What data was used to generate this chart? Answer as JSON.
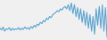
{
  "values": [
    55,
    52,
    57,
    50,
    54,
    53,
    56,
    51,
    55,
    52,
    54,
    53,
    56,
    52,
    55,
    53,
    57,
    54,
    56,
    53,
    58,
    55,
    60,
    57,
    62,
    60,
    65,
    63,
    68,
    66,
    72,
    70,
    75,
    73,
    78,
    80,
    82,
    85,
    83,
    88,
    86,
    90,
    92,
    88,
    95,
    85,
    98,
    80,
    95,
    75,
    90,
    70,
    88,
    65,
    85,
    60,
    82,
    55,
    78,
    50,
    75,
    45,
    88,
    60,
    92,
    55,
    95,
    50,
    90,
    40
  ],
  "line_color": "#5ba3d0",
  "background_color": "#f0f0f0",
  "linewidth": 0.8
}
